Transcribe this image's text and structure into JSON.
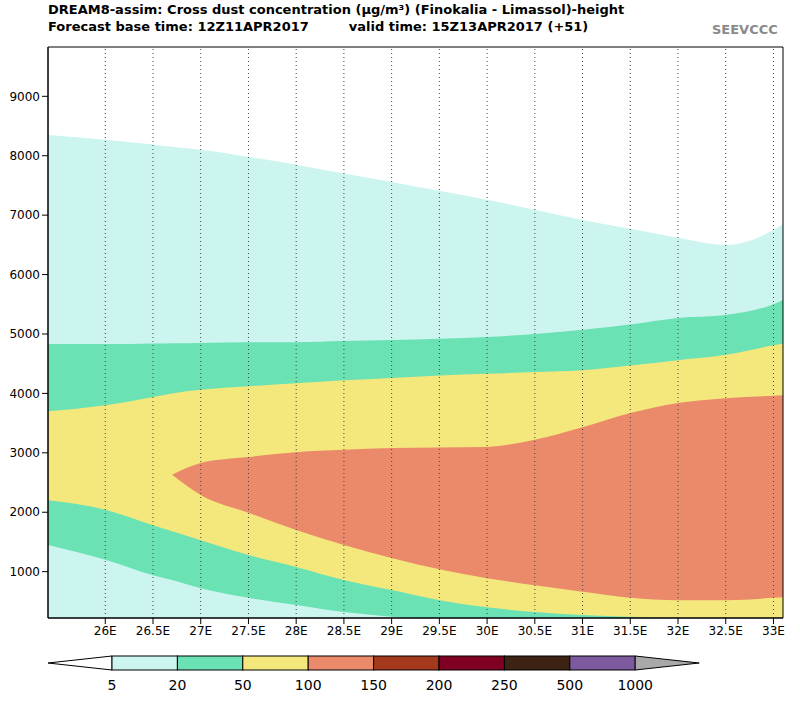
{
  "chart_data": {
    "type": "contour",
    "title": "DREAM8-assim: Cross dust concentration (μg/m³) (Finokalia - Limassol)-height",
    "subtitle": [
      "Forecast base time: 12Z11APR2017",
      "valid time: 15Z13APR2017 (+51)"
    ],
    "logo": "SEEVCCC",
    "x": [
      25.4,
      26,
      26.5,
      26.7,
      27,
      27.5,
      28,
      28.5,
      29,
      29.5,
      30,
      30.5,
      31,
      31.5,
      32,
      32.5,
      33,
      33.1
    ],
    "series": [
      {
        "level": 5,
        "lower": [
          0,
          0,
          0,
          0,
          0,
          0,
          0,
          0,
          0,
          0,
          0,
          0,
          0,
          0,
          0,
          0,
          0,
          0
        ],
        "upper": [
          8350,
          8270,
          8190,
          8150,
          8100,
          7980,
          7850,
          7700,
          7560,
          7410,
          7260,
          7090,
          6920,
          6770,
          6620,
          6500,
          6750,
          6850
        ]
      },
      {
        "level": 20,
        "lower": [
          1450,
          1200,
          940,
          860,
          720,
          560,
          440,
          320,
          240,
          185,
          0,
          0,
          0,
          0,
          0,
          0,
          0,
          0
        ],
        "upper": [
          4830,
          4830,
          4840,
          4845,
          4850,
          4860,
          4860,
          4880,
          4900,
          4920,
          4950,
          5000,
          5070,
          5160,
          5270,
          5320,
          5500,
          5570
        ]
      },
      {
        "level": 50,
        "lower": [
          2200,
          2040,
          1780,
          1680,
          1530,
          1280,
          1080,
          860,
          690,
          520,
          400,
          320,
          270,
          240,
          220,
          205,
          185,
          180
        ],
        "upper": [
          3700,
          3800,
          3940,
          4000,
          4060,
          4120,
          4170,
          4220,
          4260,
          4300,
          4330,
          4360,
          4390,
          4470,
          4560,
          4650,
          4810,
          4840
        ]
      },
      {
        "level": 100,
        "lower": [
          null,
          null,
          null,
          2630,
          2290,
          1990,
          1700,
          1450,
          1230,
          1040,
          890,
          770,
          660,
          560,
          520,
          520,
          560,
          570
        ],
        "upper": [
          null,
          null,
          null,
          2630,
          2830,
          2930,
          3010,
          3050,
          3080,
          3090,
          3100,
          3220,
          3430,
          3670,
          3840,
          3920,
          3960,
          3970
        ]
      }
    ],
    "xlim": [
      25.4,
      33.1
    ],
    "xticks": [
      {
        "value": 26,
        "label": "26E"
      },
      {
        "value": 26.5,
        "label": "26.5E"
      },
      {
        "value": 27,
        "label": "27E"
      },
      {
        "value": 27.5,
        "label": "27.5E"
      },
      {
        "value": 28,
        "label": "28E"
      },
      {
        "value": 28.5,
        "label": "28.5E"
      },
      {
        "value": 29,
        "label": "29E"
      },
      {
        "value": 29.5,
        "label": "29.5E"
      },
      {
        "value": 30,
        "label": "30E"
      },
      {
        "value": 30.5,
        "label": "30.5E"
      },
      {
        "value": 31,
        "label": "31E"
      },
      {
        "value": 31.5,
        "label": "31.5E"
      },
      {
        "value": 32,
        "label": "32E"
      },
      {
        "value": 32.5,
        "label": "32.5E"
      },
      {
        "value": 33,
        "label": "33E"
      }
    ],
    "ylim": [
      220,
      9830
    ],
    "yticks": [
      1000,
      2000,
      3000,
      4000,
      5000,
      6000,
      7000,
      8000,
      9000
    ],
    "grid": "x",
    "colorbar": {
      "ticks": [
        5,
        20,
        50,
        100,
        150,
        200,
        250,
        500,
        1000
      ],
      "colors": [
        "#ccf5f0",
        "#6ae2b4",
        "#f4e77c",
        "#ea8a6a",
        "#a5391c",
        "#800024",
        "#3c2314",
        "#7d5a9e"
      ],
      "under_color": "#ffffff",
      "over_color": "#a9a9a9"
    }
  }
}
